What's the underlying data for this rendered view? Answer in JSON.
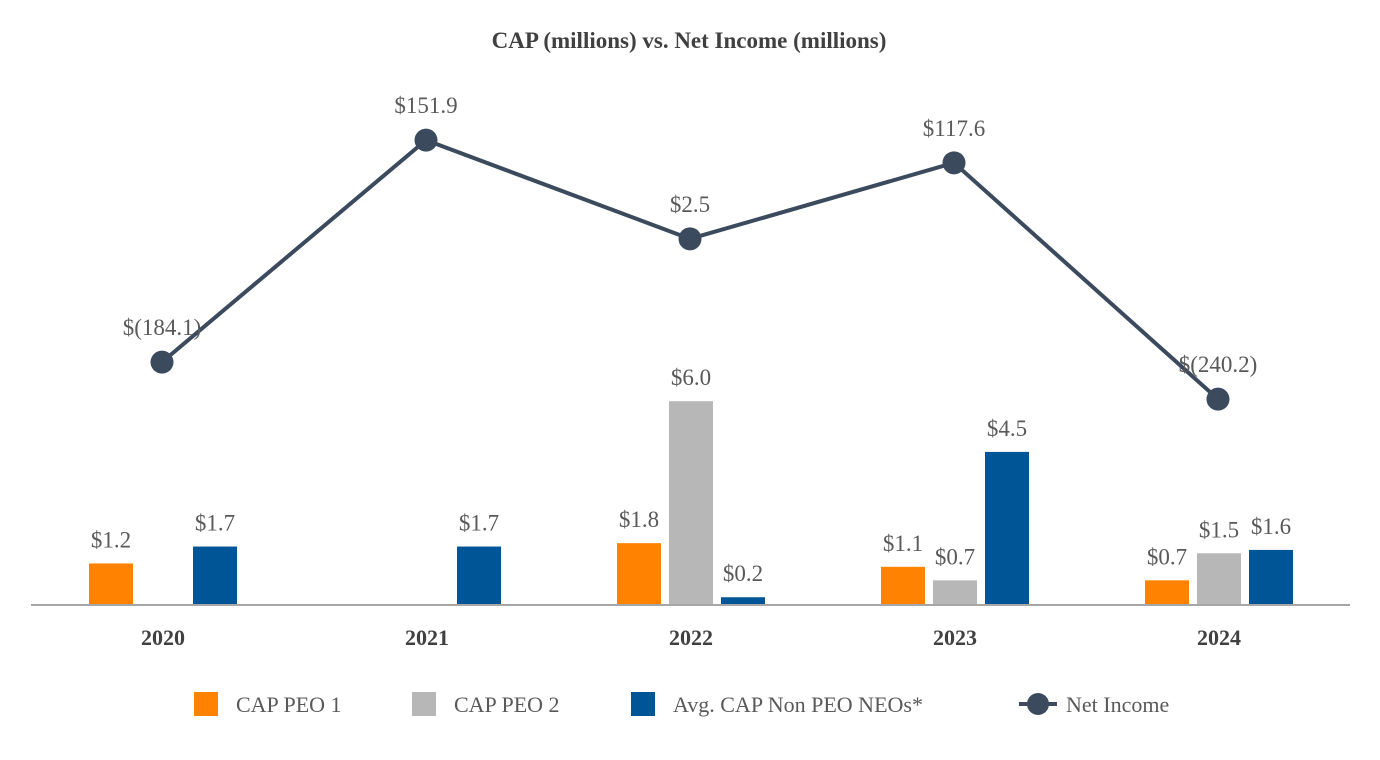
{
  "chart_data": {
    "type": "bar",
    "title": "CAP (millions) vs. Net Income (millions)",
    "xlabel": "",
    "ylabel": "",
    "categories": [
      "2020",
      "2021",
      "2022",
      "2023",
      "2024"
    ],
    "series": [
      {
        "name": "CAP PEO 1",
        "type": "bar",
        "color": "#FF8200",
        "values": [
          1.2,
          null,
          1.8,
          1.1,
          0.7
        ],
        "labels": [
          "$1.2",
          "",
          "$1.8",
          "$1.1",
          "$0.7"
        ]
      },
      {
        "name": "CAP PEO 2",
        "type": "bar",
        "color": "#B7B7B7",
        "values": [
          null,
          null,
          6.0,
          0.7,
          1.5
        ],
        "labels": [
          "",
          "",
          "$6.0",
          "$0.7",
          "$1.5"
        ]
      },
      {
        "name": "Avg. CAP Non PEO NEOs*",
        "type": "bar",
        "color": "#005596",
        "values": [
          1.7,
          1.7,
          0.2,
          4.5,
          1.6
        ],
        "labels": [
          "$1.7",
          "$1.7",
          "$0.2",
          "$4.5",
          "$1.6"
        ]
      },
      {
        "name": "Net Income",
        "type": "line",
        "color": "#3B4A5C",
        "values": [
          -184.1,
          151.9,
          2.5,
          117.6,
          -240.2
        ],
        "labels": [
          "$(184.1)",
          "$151.9",
          "$2.5",
          "$117.6",
          "$(240.2)"
        ]
      }
    ],
    "legend_position": "bottom",
    "grid": false
  }
}
